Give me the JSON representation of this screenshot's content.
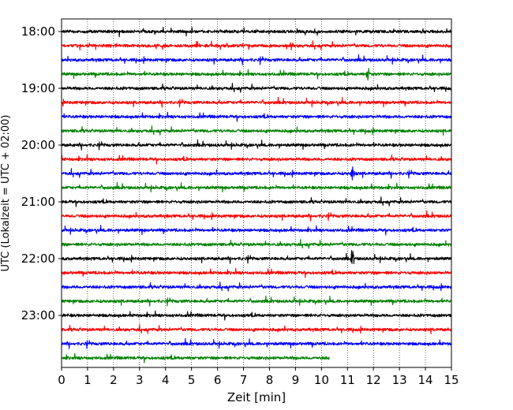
{
  "chart_data": {
    "type": "line",
    "title": "",
    "xlabel": "Zeit  [min]",
    "ylabel": "UTC (Lokalzeit = UTC + 02:00)",
    "xlim": [
      0,
      15
    ],
    "x_ticks": [
      0,
      1,
      2,
      3,
      4,
      5,
      6,
      7,
      8,
      9,
      10,
      11,
      12,
      13,
      14,
      15
    ],
    "x_tick_labels": [
      "0",
      "1",
      "2",
      "3",
      "4",
      "5",
      "6",
      "7",
      "8",
      "9",
      "10",
      "11",
      "12",
      "13",
      "14",
      "15"
    ],
    "y_ticks": [
      "18:00",
      "19:00",
      "20:00",
      "21:00",
      "22:00",
      "23:00"
    ],
    "grid": "vertical dotted",
    "trace_colors": [
      "#000000",
      "#ff0000",
      "#0000ff",
      "#008000"
    ],
    "series": [
      {
        "start": "18:00",
        "end_min": 15,
        "color": "#000000"
      },
      {
        "start": "18:15",
        "end_min": 15,
        "color": "#ff0000"
      },
      {
        "start": "18:30",
        "end_min": 15,
        "color": "#0000ff"
      },
      {
        "start": "18:45",
        "end_min": 15,
        "color": "#008000",
        "event_min": 11.8
      },
      {
        "start": "19:00",
        "end_min": 15,
        "color": "#000000"
      },
      {
        "start": "19:15",
        "end_min": 15,
        "color": "#ff0000"
      },
      {
        "start": "19:30",
        "end_min": 15,
        "color": "#0000ff"
      },
      {
        "start": "19:45",
        "end_min": 15,
        "color": "#008000"
      },
      {
        "start": "20:00",
        "end_min": 15,
        "color": "#000000"
      },
      {
        "start": "20:15",
        "end_min": 15,
        "color": "#ff0000"
      },
      {
        "start": "20:30",
        "end_min": 15,
        "color": "#0000ff",
        "event_min": 11.2
      },
      {
        "start": "20:45",
        "end_min": 15,
        "color": "#008000"
      },
      {
        "start": "21:00",
        "end_min": 15,
        "color": "#000000"
      },
      {
        "start": "21:15",
        "end_min": 15,
        "color": "#ff0000"
      },
      {
        "start": "21:30",
        "end_min": 15,
        "color": "#0000ff"
      },
      {
        "start": "21:45",
        "end_min": 15,
        "color": "#008000"
      },
      {
        "start": "22:00",
        "end_min": 15,
        "color": "#000000",
        "event_min": 11.2
      },
      {
        "start": "22:15",
        "end_min": 15,
        "color": "#ff0000"
      },
      {
        "start": "22:30",
        "end_min": 15,
        "color": "#0000ff"
      },
      {
        "start": "22:45",
        "end_min": 15,
        "color": "#008000"
      },
      {
        "start": "23:00",
        "end_min": 15,
        "color": "#000000"
      },
      {
        "start": "23:15",
        "end_min": 15,
        "color": "#ff0000"
      },
      {
        "start": "23:30",
        "end_min": 15,
        "color": "#0000ff"
      },
      {
        "start": "23:45",
        "end_min": 10.3,
        "color": "#008000"
      }
    ]
  }
}
